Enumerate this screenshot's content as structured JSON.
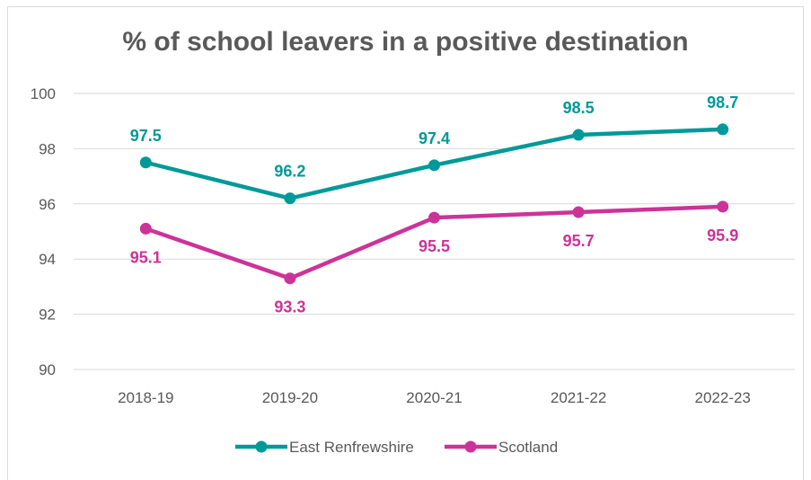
{
  "chart_data": {
    "type": "line",
    "title": "% of school leavers in a positive destination",
    "xlabel": "",
    "ylabel": "",
    "categories": [
      "2018-19",
      "2019-20",
      "2020-21",
      "2021-22",
      "2022-23"
    ],
    "ylim": [
      90,
      100
    ],
    "yticks": [
      90,
      92,
      94,
      96,
      98,
      100
    ],
    "grid": true,
    "legend_position": "bottom",
    "series": [
      {
        "name": "East Renfrewshire",
        "values": [
          97.5,
          96.2,
          97.4,
          98.5,
          98.7
        ],
        "labels": [
          "97.5",
          "96.2",
          "97.4",
          "98.5",
          "98.7"
        ],
        "color": "#009999",
        "label_position": "above"
      },
      {
        "name": "Scotland",
        "values": [
          95.1,
          93.3,
          95.5,
          95.7,
          95.9
        ],
        "labels": [
          "95.1",
          "93.3",
          "95.5",
          "95.7",
          "95.9"
        ],
        "color": "#cc3399",
        "label_position": "below"
      }
    ]
  }
}
